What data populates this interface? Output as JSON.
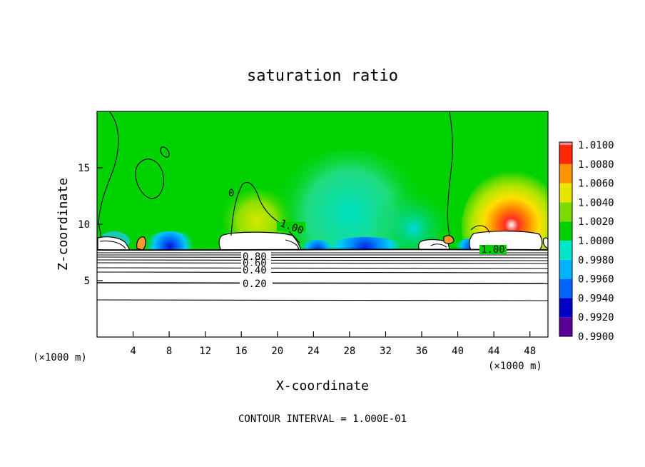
{
  "chart_data": {
    "type": "contour",
    "title": "saturation ratio",
    "xlabel": "X-coordinate",
    "ylabel": "Z-coordinate",
    "x_unit_left": "(×1000 m)",
    "x_unit_right": "(×1000 m)",
    "xlim": [
      0,
      50
    ],
    "ylim": [
      0,
      20
    ],
    "x_ticks": [
      4,
      8,
      12,
      16,
      20,
      24,
      28,
      32,
      36,
      40,
      44,
      48
    ],
    "y_ticks": [
      5,
      10,
      15
    ],
    "footer": "CONTOUR INTERVAL = 1.000E-01",
    "colorbar": {
      "levels": [
        "0.9900",
        "0.9920",
        "0.9940",
        "0.9960",
        "0.9980",
        "1.0000",
        "1.0020",
        "1.0040",
        "1.0060",
        "1.0080",
        "1.0100"
      ],
      "colors": [
        "#5a0096",
        "#0000c8",
        "#0064ff",
        "#00b4ff",
        "#00e6c8",
        "#00d200",
        "#7adc00",
        "#e6e600",
        "#ff9600",
        "#ff2800",
        "#f08ca0"
      ]
    },
    "contour_labels": [
      {
        "text": "1.00",
        "x": 21.5,
        "z": 9.5
      },
      {
        "text": "1.00",
        "x": 44.5,
        "z": 8.0
      },
      {
        "text": "0",
        "x": 15.0,
        "z": 12.9
      },
      {
        "text": "0.80",
        "x": 17.7,
        "z": 7.6
      },
      {
        "text": "0.60",
        "x": 17.7,
        "z": 7.0
      },
      {
        "text": "0.40",
        "x": 17.7,
        "z": 6.2
      },
      {
        "text": "0.20",
        "x": 17.7,
        "z": 4.9
      }
    ],
    "horizontal_contours_z": [
      8.0,
      7.6,
      7.2,
      6.8,
      6.3,
      5.9,
      5.0,
      3.5
    ],
    "cloud_regions": [
      {
        "x0": 14.6,
        "x1": 21.2,
        "z0": 7.9,
        "z1": 9.2
      },
      {
        "x0": 35.9,
        "x1": 39.0,
        "z0": 7.9,
        "z1": 8.9
      },
      {
        "x0": 41.6,
        "x1": 49.1,
        "z0": 7.9,
        "z1": 9.3
      }
    ],
    "supersaturation_maxima": [
      {
        "x": 45.5,
        "z": 10.2,
        "value": "1.0100"
      },
      {
        "x": 17.5,
        "z": 11.0,
        "value": "1.0020"
      }
    ],
    "subsaturation_minima": [
      {
        "x": 8.0,
        "z": 8.2,
        "value": "0.9920"
      },
      {
        "x": 22.5,
        "z": 8.1,
        "value": "0.9920"
      },
      {
        "x": 29.0,
        "z": 8.1,
        "value": "0.9920"
      }
    ]
  }
}
